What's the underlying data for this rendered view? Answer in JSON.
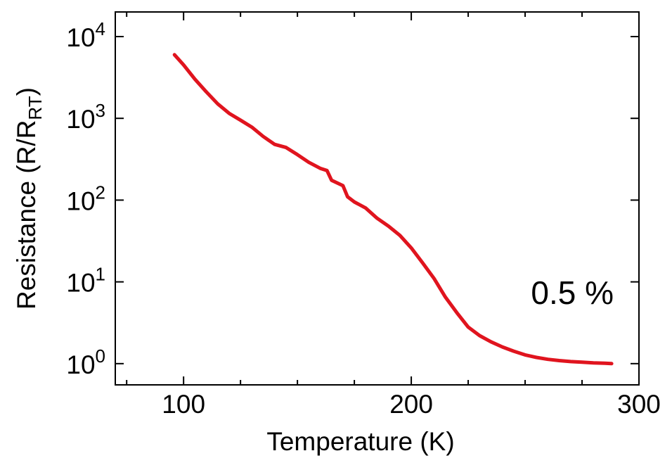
{
  "chart_data": {
    "type": "line",
    "xlabel": "Temperature (K)",
    "ylabel": {
      "main": "Resistance  (R/R",
      "subscript": "RT",
      "close": ")"
    },
    "xlim": [
      70,
      300
    ],
    "ylim": [
      0.55,
      20000.0
    ],
    "yscale": "log",
    "grid": false,
    "x_ticks": [
      100,
      200,
      300
    ],
    "x_tick_labels": [
      "100",
      "200",
      "300"
    ],
    "y_ticks": [
      {
        "value": 1,
        "base": "10",
        "exp": "0"
      },
      {
        "value": 10,
        "base": "10",
        "exp": "1"
      },
      {
        "value": 100,
        "base": "10",
        "exp": "2"
      },
      {
        "value": 1000,
        "base": "10",
        "exp": "3"
      },
      {
        "value": 10000,
        "base": "10",
        "exp": "4"
      }
    ],
    "annotation": "0.5 %",
    "series": [
      {
        "color": "#e0141e",
        "x": [
          96,
          100,
          105,
          110,
          115,
          120,
          125,
          130,
          135,
          140,
          145,
          150,
          155,
          160,
          163,
          165,
          170,
          172,
          175,
          180,
          185,
          190,
          195,
          200,
          205,
          210,
          215,
          220,
          225,
          230,
          235,
          240,
          245,
          250,
          255,
          260,
          265,
          270,
          275,
          280,
          285,
          288
        ],
        "y": [
          6000,
          4500,
          3000,
          2100,
          1500,
          1150,
          950,
          780,
          600,
          480,
          440,
          360,
          290,
          245,
          230,
          175,
          150,
          110,
          95,
          80,
          60,
          48,
          37,
          26,
          17,
          11,
          6.5,
          4.2,
          2.8,
          2.2,
          1.85,
          1.6,
          1.42,
          1.28,
          1.19,
          1.13,
          1.09,
          1.06,
          1.04,
          1.02,
          1.01,
          1.0
        ]
      }
    ]
  }
}
